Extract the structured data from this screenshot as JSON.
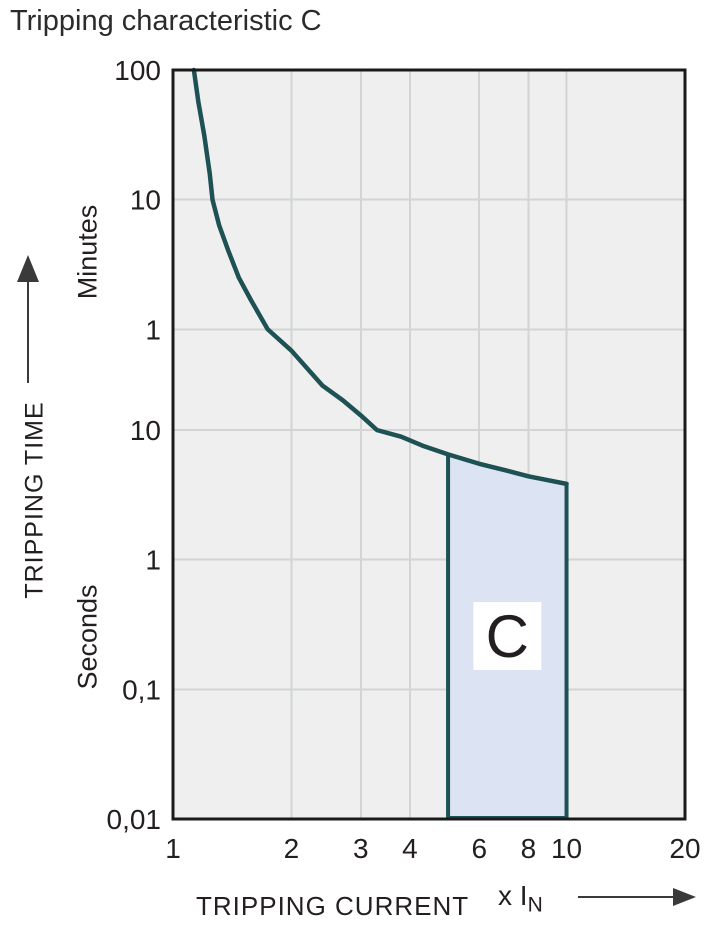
{
  "title": "Tripping characteristic C",
  "colors": {
    "curve": "#1d5153",
    "region_fill": "#dce3f2",
    "region_border": "#1d5153",
    "region_label_bg": "#ffffff",
    "plot_bg": "#efefef",
    "grid": "#d2d4d6",
    "axis_border": "#1a1a1a",
    "text": "#231f20",
    "arrow": "#3a3a3a"
  },
  "icons": {
    "up_arrow": "▲",
    "right_arrow": "▶"
  },
  "y_axis": {
    "axis_label": "TRIPPING TIME",
    "minutes_label": "Minutes",
    "seconds_label": "Seconds",
    "ticks": [
      {
        "label": "100",
        "seconds": 6000
      },
      {
        "label": "10",
        "seconds": 600
      },
      {
        "label": "1",
        "seconds": 60
      },
      {
        "label": "10",
        "seconds": 10
      },
      {
        "label": "1",
        "seconds": 1
      },
      {
        "label": "0,1",
        "seconds": 0.1
      },
      {
        "label": "0,01",
        "seconds": 0.01
      }
    ]
  },
  "x_axis": {
    "axis_label": "TRIPPING CURRENT",
    "multiplier_prefix": "x I",
    "multiplier_sub": "N",
    "ticks": [
      {
        "label": "1",
        "value": 1
      },
      {
        "label": "2",
        "value": 2
      },
      {
        "label": "3",
        "value": 3
      },
      {
        "label": "4",
        "value": 4
      },
      {
        "label": "6",
        "value": 6
      },
      {
        "label": "8",
        "value": 8
      },
      {
        "label": "10",
        "value": 10
      },
      {
        "label": "20",
        "value": 20
      }
    ]
  },
  "chart_data": {
    "type": "line",
    "title": "Tripping characteristic C",
    "xlabel": "TRIPPING CURRENT (x IN)",
    "ylabel": "TRIPPING TIME",
    "x_scale": "log",
    "y_scale": "log",
    "xlim": [
      1,
      20
    ],
    "ylim_seconds": [
      0.01,
      6000
    ],
    "x_gridlines": [
      2,
      3,
      4,
      6,
      8,
      10
    ],
    "y_gridlines_seconds": [
      600,
      60,
      10,
      1,
      0.1
    ],
    "series": [
      {
        "name": "C tripping curve",
        "points_x_multiple_vs_seconds": [
          [
            1.13,
            6000
          ],
          [
            1.16,
            3400
          ],
          [
            1.2,
            1900
          ],
          [
            1.24,
            950
          ],
          [
            1.26,
            600
          ],
          [
            1.31,
            380
          ],
          [
            1.38,
            245
          ],
          [
            1.47,
            150
          ],
          [
            1.58,
            100
          ],
          [
            1.74,
            60
          ],
          [
            2.0,
            41
          ],
          [
            2.4,
            22
          ],
          [
            2.7,
            17
          ],
          [
            3.0,
            13
          ],
          [
            3.3,
            10
          ],
          [
            3.8,
            8.9
          ],
          [
            4.3,
            7.6
          ],
          [
            5.0,
            6.5
          ],
          [
            6.0,
            5.5
          ],
          [
            7.0,
            4.9
          ],
          [
            8.0,
            4.4
          ],
          [
            9.0,
            4.1
          ],
          [
            10.0,
            3.85
          ]
        ]
      }
    ],
    "region": {
      "label": "C",
      "x_from": 5,
      "x_to": 10,
      "y_bottom_seconds": 0.01,
      "top_follows_curve": true
    }
  }
}
